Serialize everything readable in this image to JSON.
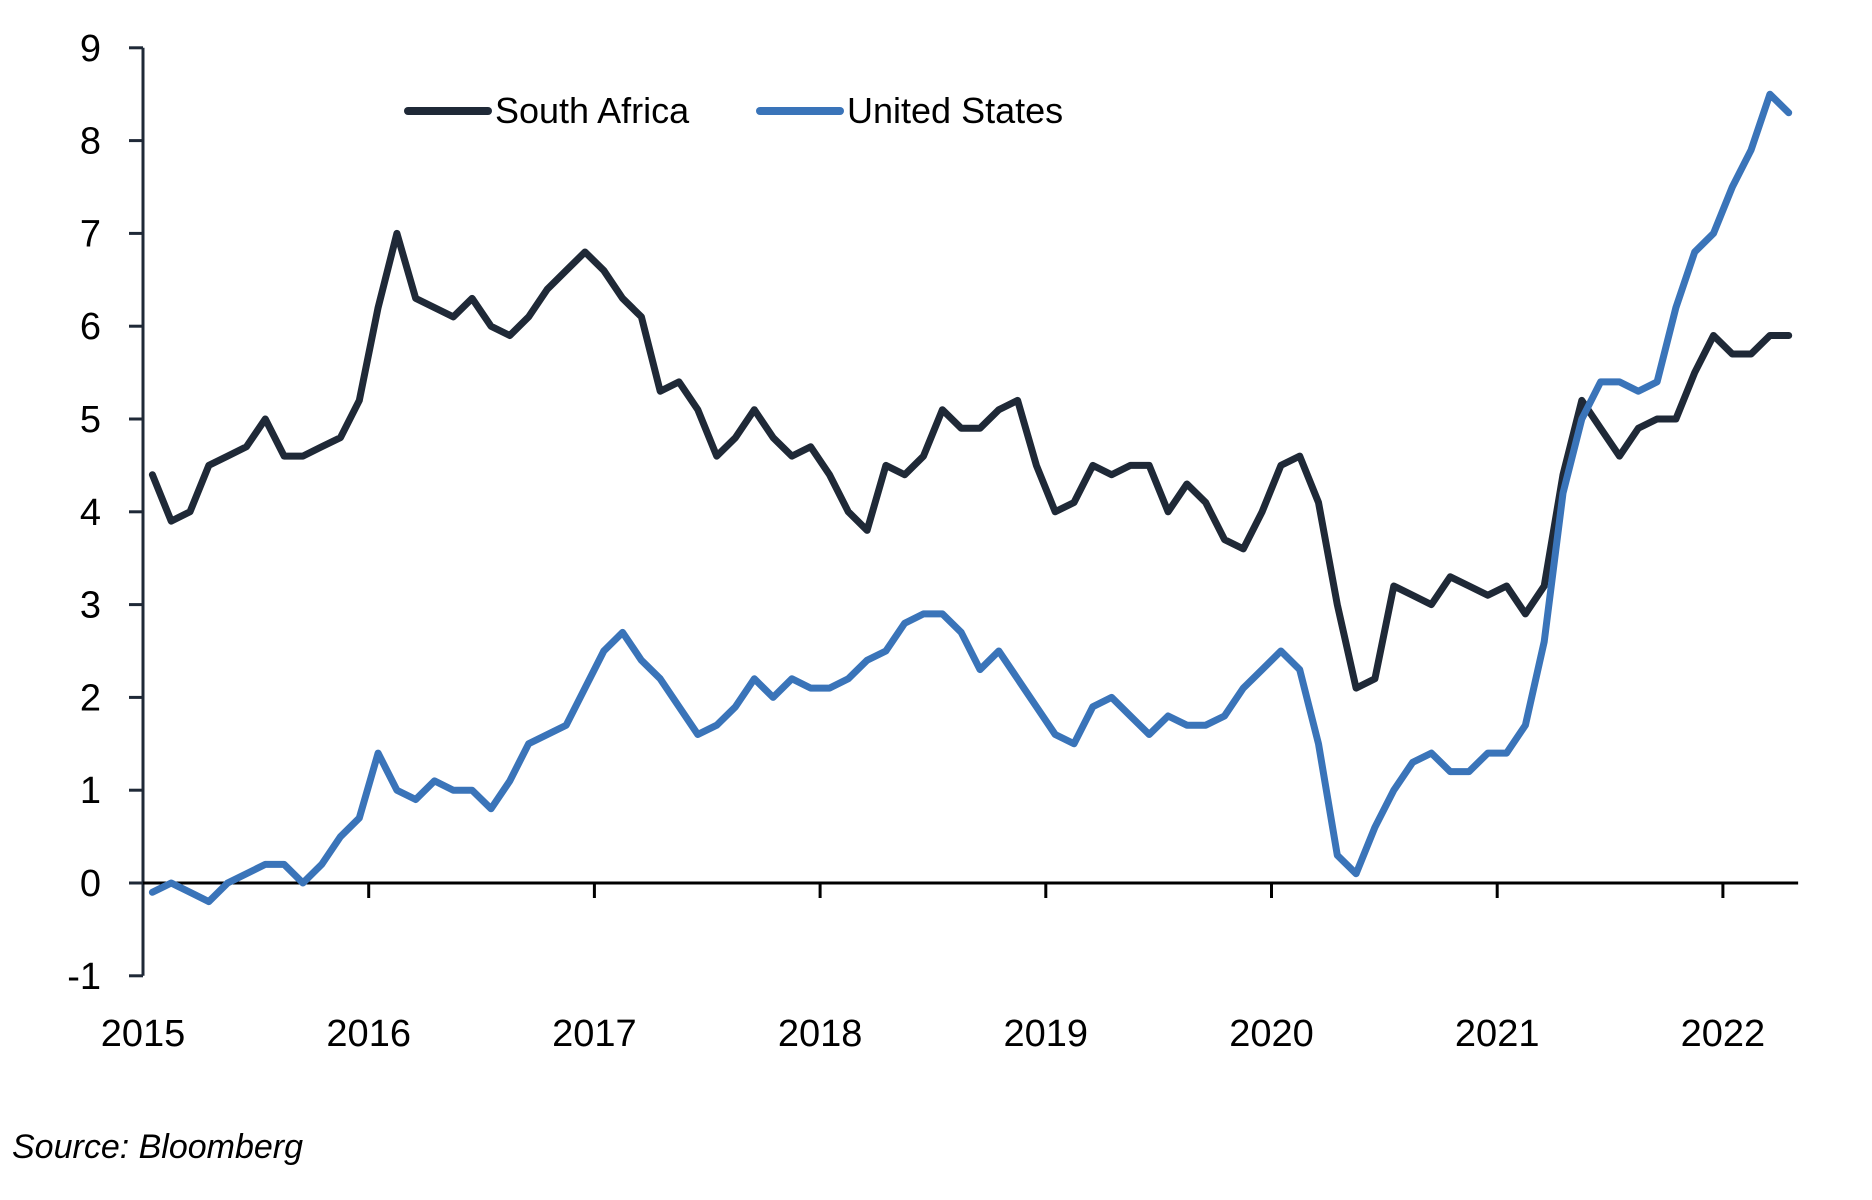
{
  "chart_data": {
    "type": "line",
    "title": "",
    "xlabel": "",
    "ylabel": "",
    "ylim": [
      -1,
      9
    ],
    "yticks": [
      -1,
      0,
      1,
      2,
      3,
      4,
      5,
      6,
      7,
      8,
      9
    ],
    "xticks": [
      "2015",
      "2016",
      "2017",
      "2018",
      "2019",
      "2020",
      "2021",
      "2022"
    ],
    "x_start": "2015-01",
    "x_frequency": "monthly",
    "grid": false,
    "legend_position": "top-left",
    "series": [
      {
        "name": "South Africa",
        "color": "#1f2937",
        "values": [
          4.4,
          3.9,
          4.0,
          4.5,
          4.6,
          4.7,
          5.0,
          4.6,
          4.6,
          4.7,
          4.8,
          5.2,
          6.2,
          7.0,
          6.3,
          6.2,
          6.1,
          6.3,
          6.0,
          5.9,
          6.1,
          6.4,
          6.6,
          6.8,
          6.6,
          6.3,
          6.1,
          5.3,
          5.4,
          5.1,
          4.6,
          4.8,
          5.1,
          4.8,
          4.6,
          4.7,
          4.4,
          4.0,
          3.8,
          4.5,
          4.4,
          4.6,
          5.1,
          4.9,
          4.9,
          5.1,
          5.2,
          4.5,
          4.0,
          4.1,
          4.5,
          4.4,
          4.5,
          4.5,
          4.0,
          4.3,
          4.1,
          3.7,
          3.6,
          4.0,
          4.5,
          4.6,
          4.1,
          3.0,
          2.1,
          2.2,
          3.2,
          3.1,
          3.0,
          3.3,
          3.2,
          3.1,
          3.2,
          2.9,
          3.2,
          4.4,
          5.2,
          4.9,
          4.6,
          4.9,
          5.0,
          5.0,
          5.5,
          5.9,
          5.7,
          5.7,
          5.9,
          5.9
        ]
      },
      {
        "name": "United States",
        "color": "#3a74b9",
        "values": [
          -0.1,
          0.0,
          -0.1,
          -0.2,
          0.0,
          0.1,
          0.2,
          0.2,
          0.0,
          0.2,
          0.5,
          0.7,
          1.4,
          1.0,
          0.9,
          1.1,
          1.0,
          1.0,
          0.8,
          1.1,
          1.5,
          1.6,
          1.7,
          2.1,
          2.5,
          2.7,
          2.4,
          2.2,
          1.9,
          1.6,
          1.7,
          1.9,
          2.2,
          2.0,
          2.2,
          2.1,
          2.1,
          2.2,
          2.4,
          2.5,
          2.8,
          2.9,
          2.9,
          2.7,
          2.3,
          2.5,
          2.2,
          1.9,
          1.6,
          1.5,
          1.9,
          2.0,
          1.8,
          1.6,
          1.8,
          1.7,
          1.7,
          1.8,
          2.1,
          2.3,
          2.5,
          2.3,
          1.5,
          0.3,
          0.1,
          0.6,
          1.0,
          1.3,
          1.4,
          1.2,
          1.2,
          1.4,
          1.4,
          1.7,
          2.6,
          4.2,
          5.0,
          5.4,
          5.4,
          5.3,
          5.4,
          6.2,
          6.8,
          7.0,
          7.5,
          7.9,
          8.5,
          8.3
        ]
      }
    ]
  },
  "source": "Source: Bloomberg"
}
